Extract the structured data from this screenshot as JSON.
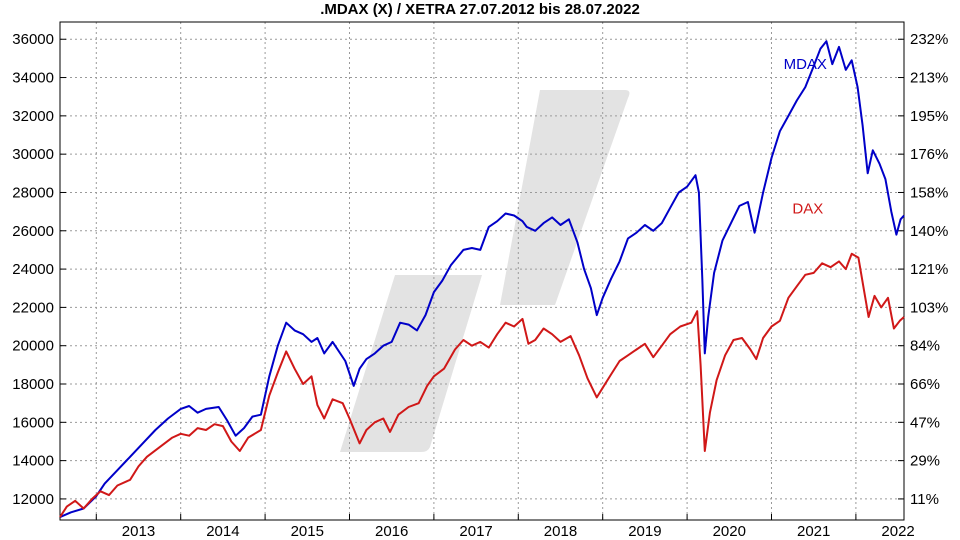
{
  "chart_data": {
    "type": "line",
    "title": ".MDAX (X) / XETRA 27.07.2012 bis 28.07.2022",
    "xlabel": "",
    "ylabel": "",
    "x_ticks": [
      "2013",
      "2014",
      "2015",
      "2016",
      "2017",
      "2018",
      "2019",
      "2020",
      "2021",
      "2022"
    ],
    "x_range": [
      2012.57,
      2022.57
    ],
    "y_ticks": [
      12000,
      14000,
      16000,
      18000,
      20000,
      22000,
      24000,
      26000,
      28000,
      30000,
      32000,
      34000,
      36000
    ],
    "ylim": [
      10900,
      36900
    ],
    "y2_ticks": [
      "11%",
      "29%",
      "47%",
      "66%",
      "84%",
      "103%",
      "121%",
      "140%",
      "158%",
      "176%",
      "195%",
      "213%",
      "232%"
    ],
    "grid": true,
    "series": [
      {
        "name": "MDAX",
        "color": "#0000c8",
        "points": [
          [
            2012.57,
            11050
          ],
          [
            2012.7,
            11300
          ],
          [
            2012.85,
            11500
          ],
          [
            2013.0,
            12150
          ],
          [
            2013.1,
            12800
          ],
          [
            2013.25,
            13500
          ],
          [
            2013.4,
            14200
          ],
          [
            2013.55,
            14900
          ],
          [
            2013.7,
            15600
          ],
          [
            2013.85,
            16200
          ],
          [
            2014.0,
            16700
          ],
          [
            2014.1,
            16850
          ],
          [
            2014.2,
            16500
          ],
          [
            2014.3,
            16700
          ],
          [
            2014.45,
            16800
          ],
          [
            2014.55,
            16100
          ],
          [
            2014.65,
            15300
          ],
          [
            2014.75,
            15700
          ],
          [
            2014.85,
            16300
          ],
          [
            2014.95,
            16400
          ],
          [
            2015.05,
            18400
          ],
          [
            2015.15,
            20000
          ],
          [
            2015.25,
            21200
          ],
          [
            2015.35,
            20800
          ],
          [
            2015.45,
            20600
          ],
          [
            2015.55,
            20200
          ],
          [
            2015.62,
            20400
          ],
          [
            2015.7,
            19600
          ],
          [
            2015.8,
            20200
          ],
          [
            2015.95,
            19200
          ],
          [
            2016.05,
            17900
          ],
          [
            2016.12,
            18800
          ],
          [
            2016.2,
            19300
          ],
          [
            2016.3,
            19600
          ],
          [
            2016.4,
            20000
          ],
          [
            2016.5,
            20200
          ],
          [
            2016.6,
            21200
          ],
          [
            2016.7,
            21100
          ],
          [
            2016.8,
            20800
          ],
          [
            2016.9,
            21600
          ],
          [
            2017.0,
            22800
          ],
          [
            2017.1,
            23400
          ],
          [
            2017.2,
            24200
          ],
          [
            2017.35,
            25000
          ],
          [
            2017.45,
            25100
          ],
          [
            2017.55,
            25000
          ],
          [
            2017.65,
            26200
          ],
          [
            2017.75,
            26500
          ],
          [
            2017.85,
            26900
          ],
          [
            2017.95,
            26800
          ],
          [
            2018.05,
            26500
          ],
          [
            2018.1,
            26200
          ],
          [
            2018.2,
            26000
          ],
          [
            2018.3,
            26400
          ],
          [
            2018.4,
            26700
          ],
          [
            2018.5,
            26300
          ],
          [
            2018.6,
            26600
          ],
          [
            2018.7,
            25400
          ],
          [
            2018.78,
            24000
          ],
          [
            2018.86,
            23000
          ],
          [
            2018.93,
            21600
          ],
          [
            2019.0,
            22500
          ],
          [
            2019.1,
            23500
          ],
          [
            2019.2,
            24400
          ],
          [
            2019.3,
            25600
          ],
          [
            2019.4,
            25900
          ],
          [
            2019.5,
            26300
          ],
          [
            2019.6,
            26000
          ],
          [
            2019.7,
            26400
          ],
          [
            2019.8,
            27200
          ],
          [
            2019.9,
            28000
          ],
          [
            2020.0,
            28300
          ],
          [
            2020.1,
            28900
          ],
          [
            2020.14,
            28000
          ],
          [
            2020.18,
            23500
          ],
          [
            2020.21,
            19600
          ],
          [
            2020.25,
            21500
          ],
          [
            2020.32,
            23800
          ],
          [
            2020.42,
            25500
          ],
          [
            2020.52,
            26400
          ],
          [
            2020.62,
            27300
          ],
          [
            2020.72,
            27500
          ],
          [
            2020.8,
            25900
          ],
          [
            2020.9,
            28000
          ],
          [
            2021.0,
            29800
          ],
          [
            2021.1,
            31200
          ],
          [
            2021.2,
            32000
          ],
          [
            2021.3,
            32800
          ],
          [
            2021.4,
            33500
          ],
          [
            2021.5,
            34600
          ],
          [
            2021.58,
            35500
          ],
          [
            2021.65,
            35900
          ],
          [
            2021.72,
            34700
          ],
          [
            2021.8,
            35600
          ],
          [
            2021.88,
            34400
          ],
          [
            2021.95,
            34900
          ],
          [
            2022.02,
            33500
          ],
          [
            2022.08,
            31500
          ],
          [
            2022.14,
            29000
          ],
          [
            2022.2,
            30200
          ],
          [
            2022.28,
            29500
          ],
          [
            2022.35,
            28700
          ],
          [
            2022.42,
            27000
          ],
          [
            2022.48,
            25800
          ],
          [
            2022.53,
            26600
          ],
          [
            2022.57,
            26800
          ]
        ]
      },
      {
        "name": "DAX",
        "color": "#d01818",
        "points": [
          [
            2012.57,
            11050
          ],
          [
            2012.65,
            11600
          ],
          [
            2012.75,
            11900
          ],
          [
            2012.85,
            11500
          ],
          [
            2012.95,
            12000
          ],
          [
            2013.05,
            12400
          ],
          [
            2013.15,
            12200
          ],
          [
            2013.25,
            12700
          ],
          [
            2013.4,
            13000
          ],
          [
            2013.5,
            13700
          ],
          [
            2013.6,
            14200
          ],
          [
            2013.75,
            14700
          ],
          [
            2013.9,
            15200
          ],
          [
            2014.0,
            15400
          ],
          [
            2014.1,
            15300
          ],
          [
            2014.2,
            15700
          ],
          [
            2014.3,
            15600
          ],
          [
            2014.4,
            15900
          ],
          [
            2014.5,
            15800
          ],
          [
            2014.6,
            15000
          ],
          [
            2014.7,
            14500
          ],
          [
            2014.8,
            15200
          ],
          [
            2014.95,
            15600
          ],
          [
            2015.05,
            17400
          ],
          [
            2015.15,
            18600
          ],
          [
            2015.25,
            19700
          ],
          [
            2015.35,
            18800
          ],
          [
            2015.45,
            18000
          ],
          [
            2015.55,
            18400
          ],
          [
            2015.62,
            16900
          ],
          [
            2015.7,
            16200
          ],
          [
            2015.8,
            17200
          ],
          [
            2015.92,
            17000
          ],
          [
            2016.0,
            16200
          ],
          [
            2016.12,
            14900
          ],
          [
            2016.2,
            15600
          ],
          [
            2016.3,
            16000
          ],
          [
            2016.4,
            16200
          ],
          [
            2016.48,
            15500
          ],
          [
            2016.58,
            16400
          ],
          [
            2016.7,
            16800
          ],
          [
            2016.82,
            17000
          ],
          [
            2016.92,
            17900
          ],
          [
            2017.0,
            18400
          ],
          [
            2017.12,
            18800
          ],
          [
            2017.25,
            19800
          ],
          [
            2017.35,
            20300
          ],
          [
            2017.45,
            20000
          ],
          [
            2017.55,
            20200
          ],
          [
            2017.65,
            19900
          ],
          [
            2017.75,
            20600
          ],
          [
            2017.85,
            21200
          ],
          [
            2017.95,
            21000
          ],
          [
            2018.05,
            21400
          ],
          [
            2018.12,
            20100
          ],
          [
            2018.2,
            20300
          ],
          [
            2018.3,
            20900
          ],
          [
            2018.4,
            20600
          ],
          [
            2018.5,
            20200
          ],
          [
            2018.62,
            20500
          ],
          [
            2018.72,
            19500
          ],
          [
            2018.82,
            18300
          ],
          [
            2018.93,
            17300
          ],
          [
            2019.0,
            17800
          ],
          [
            2019.1,
            18500
          ],
          [
            2019.2,
            19200
          ],
          [
            2019.3,
            19500
          ],
          [
            2019.4,
            19800
          ],
          [
            2019.5,
            20100
          ],
          [
            2019.6,
            19400
          ],
          [
            2019.7,
            20000
          ],
          [
            2019.8,
            20600
          ],
          [
            2019.92,
            21000
          ],
          [
            2020.05,
            21200
          ],
          [
            2020.12,
            21800
          ],
          [
            2020.16,
            19000
          ],
          [
            2020.21,
            14500
          ],
          [
            2020.27,
            16500
          ],
          [
            2020.35,
            18200
          ],
          [
            2020.45,
            19500
          ],
          [
            2020.55,
            20300
          ],
          [
            2020.65,
            20400
          ],
          [
            2020.75,
            19800
          ],
          [
            2020.82,
            19300
          ],
          [
            2020.9,
            20400
          ],
          [
            2021.0,
            21000
          ],
          [
            2021.1,
            21300
          ],
          [
            2021.2,
            22500
          ],
          [
            2021.3,
            23100
          ],
          [
            2021.4,
            23700
          ],
          [
            2021.5,
            23800
          ],
          [
            2021.6,
            24300
          ],
          [
            2021.7,
            24100
          ],
          [
            2021.8,
            24400
          ],
          [
            2021.88,
            24000
          ],
          [
            2021.95,
            24800
          ],
          [
            2022.03,
            24600
          ],
          [
            2022.1,
            22800
          ],
          [
            2022.15,
            21500
          ],
          [
            2022.22,
            22600
          ],
          [
            2022.3,
            22000
          ],
          [
            2022.38,
            22500
          ],
          [
            2022.45,
            20900
          ],
          [
            2022.52,
            21300
          ],
          [
            2022.57,
            21500
          ]
        ]
      }
    ]
  }
}
